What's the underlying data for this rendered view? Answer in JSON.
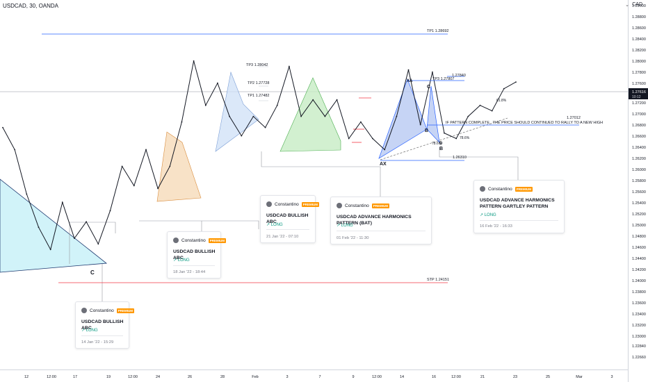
{
  "header": {
    "symbol": "USDCAD, 30, OANDA",
    "currency": "CAD"
  },
  "price_axis": {
    "labels": [
      "1.29000",
      "1.28800",
      "1.28600",
      "1.28400",
      "1.28200",
      "1.28000",
      "1.27800",
      "1.27600",
      "1.27400",
      "1.27200",
      "1.27000",
      "1.26800",
      "1.26600",
      "1.26400",
      "1.26200",
      "1.26000",
      "1.25800",
      "1.25600",
      "1.25400",
      "1.25200",
      "1.25000",
      "1.24800",
      "1.24600",
      "1.24400",
      "1.24200",
      "1.24000",
      "1.23800",
      "1.23600",
      "1.23400",
      "1.23200",
      "1.23000",
      "1.22840",
      "1.22660"
    ],
    "last_price": "1.27616",
    "countdown": "10:12"
  },
  "time_axis": {
    "labels": [
      "12",
      "12:00",
      "17",
      "19",
      "12:00",
      "24",
      "26",
      "28",
      "Feb",
      "3",
      "7",
      "9",
      "12:00",
      "14",
      "16",
      "12:00",
      "21",
      "23",
      "25",
      "Mar",
      "3"
    ]
  },
  "levels": [
    {
      "label": "TP1 1.28692",
      "color": "#2962ff"
    },
    {
      "label": "TP3  1.28042",
      "color": "#dadde3"
    },
    {
      "label": "TP2 1.27728",
      "color": "#dadde3"
    },
    {
      "label": "TP1 1.27482",
      "color": "#dadde3"
    },
    {
      "label": "TP3 1.27807",
      "color": "#2962ff"
    },
    {
      "label": "1.27840",
      "color": "#2962ff"
    },
    {
      "label": "1.27012",
      "color": "#2962ff"
    },
    {
      "label": "1.26310",
      "color": "#2962ff"
    },
    {
      "label": "STP 1.24151",
      "color": "#f23645"
    }
  ],
  "annotations": {
    "note": "IF PATTERN COMPLETE , THE PRICE SHOULD CONTINUED TO RALLY TO A NEW HIGH",
    "point_labels": [
      "C",
      "B",
      "AX",
      "B",
      "C",
      "D",
      "XA"
    ],
    "fib_labels": [
      "78.6%",
      "78.6%",
      "61.8%"
    ]
  },
  "ideas": [
    {
      "author": "Constantino",
      "badge": "PREMIUM",
      "title": "USDCAD BULLISH ABC",
      "direction": "LONG",
      "date": "14 Jan '22 - 15:29"
    },
    {
      "author": "Constantino",
      "badge": "PREMIUM",
      "title": "USDCAD BULLISH ABC",
      "direction": "LONG",
      "date": "18 Jan '22 - 18:44"
    },
    {
      "author": "Constantino",
      "badge": "PREMIUM",
      "title": "USDCAD BULLISH ABC",
      "direction": "LONG",
      "date": "21 Jan '22 - 07:10"
    },
    {
      "author": "Constantino",
      "badge": "PREMIUM",
      "title": "USDCAD ADVANCE HARMONICS PATTERN (BAT)",
      "direction": "LONG",
      "date": "01 Feb '22 - 11:30"
    },
    {
      "author": "Constantino",
      "badge": "PREMIUM",
      "title": "USDCAD  ADVANCE HARMONICS PATTERN GARTLEY PATTERN",
      "direction": "LONG",
      "date": "16 Feb '22 - 16:33"
    }
  ],
  "chart_data": {
    "type": "line",
    "title": "USDCAD, 30, OANDA",
    "x_range": [
      "11 Jan 2022",
      "3 Mar 2022"
    ],
    "ylim": [
      1.2266,
      1.29
    ],
    "series": [
      {
        "x": [
          "11 Jan",
          "12 Jan",
          "13 Jan",
          "14 Jan",
          "15 Jan",
          "17 Jan",
          "18 Jan",
          "18 Jan",
          "19 Jan",
          "20 Jan",
          "21 Jan",
          "24 Jan",
          "25 Jan",
          "26 Jan",
          "26 Jan",
          "27 Jan",
          "28 Jan",
          "28 Jan",
          "29 Jan",
          "31 Jan",
          "1 Feb",
          "2 Feb",
          "3 Feb",
          "4 Feb",
          "7 Feb",
          "7 Feb",
          "8 Feb",
          "9 Feb",
          "10 Feb",
          "10 Feb",
          "11 Feb",
          "12 Feb",
          "14 Feb",
          "14 Feb",
          "15 Feb",
          "15 Feb",
          "16 Feb",
          "16 Feb",
          "17 Feb",
          "18 Feb",
          "19 Feb",
          "21 Feb",
          "22 Feb",
          "23 Feb"
        ],
        "values": [
          1.268,
          1.264,
          1.256,
          1.25,
          1.246,
          1.2545,
          1.248,
          1.251,
          1.247,
          1.253,
          1.261,
          1.2575,
          1.264,
          1.257,
          1.261,
          1.269,
          1.28,
          1.272,
          1.276,
          1.27,
          1.2665,
          1.27,
          1.268,
          1.272,
          1.279,
          1.27,
          1.273,
          1.27,
          1.273,
          1.266,
          1.269,
          1.266,
          1.264,
          1.27,
          1.2784,
          1.2685,
          1.278,
          1.267,
          1.266,
          1.27,
          1.272,
          1.271,
          1.275,
          1.2762
        ]
      }
    ],
    "grid": false,
    "legend": "none"
  }
}
